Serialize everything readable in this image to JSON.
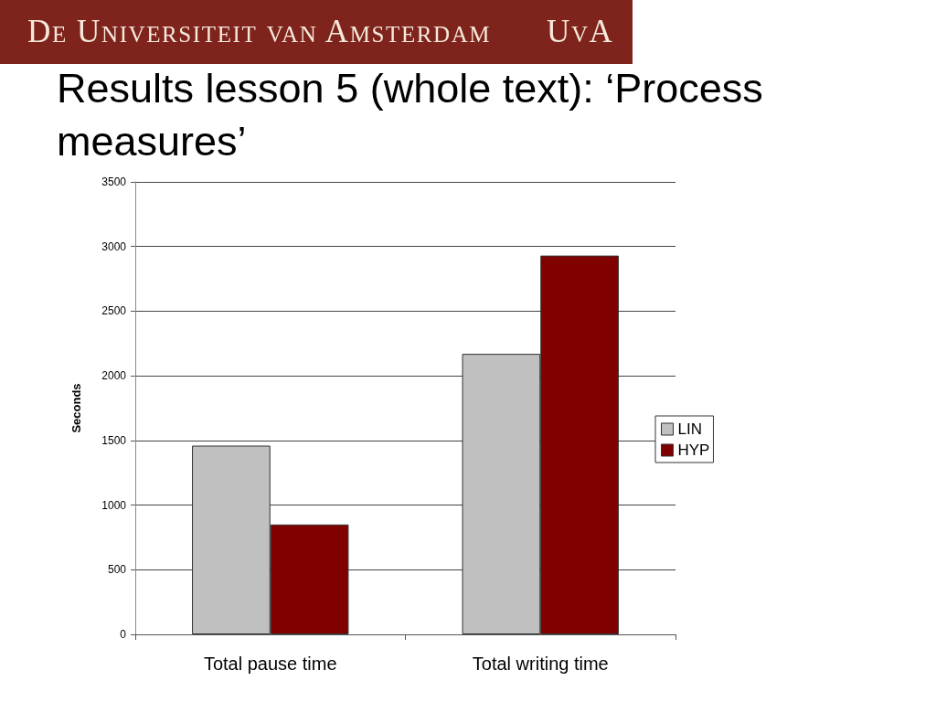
{
  "chart_data": {
    "type": "bar",
    "title": "Results lesson 5 (whole text): ‘Process measures’",
    "annotations": [
      "De Universiteit van Amsterdam",
      "UvA"
    ],
    "ylabel": "Seconds",
    "categories": [
      "Total pause time",
      "Total writing time"
    ],
    "series": [
      {
        "name": "LIN",
        "color": "#c0c0c0",
        "values": [
          1460,
          2170
        ]
      },
      {
        "name": "HYP",
        "color": "#800000",
        "values": [
          850,
          2930
        ]
      }
    ],
    "ylim": [
      0,
      3500
    ],
    "yticks": [
      0,
      500,
      1000,
      1500,
      2000,
      2500,
      3000,
      3500
    ],
    "grid": "y",
    "legend": "right"
  }
}
